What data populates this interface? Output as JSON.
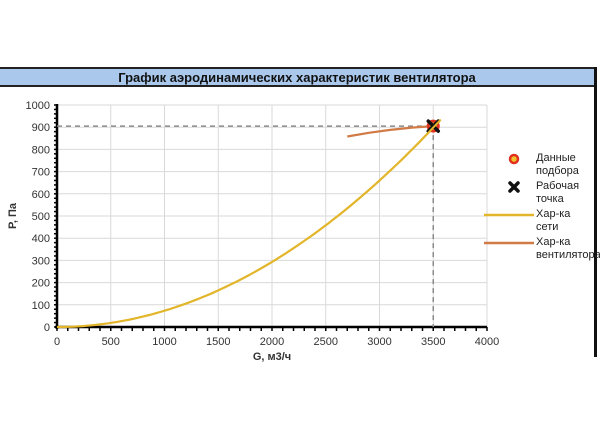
{
  "chart_data": {
    "type": "line",
    "title": "График аэродинамических характеристик вентилятора",
    "xlabel": "G, м3/ч",
    "ylabel": "P, Па",
    "xlim": [
      0,
      4000
    ],
    "ylim": [
      0,
      1000
    ],
    "x_ticks": [
      0,
      500,
      1000,
      1500,
      2000,
      2500,
      3000,
      3500,
      4000
    ],
    "y_ticks": [
      0,
      100,
      200,
      300,
      400,
      500,
      600,
      700,
      800,
      900,
      1000
    ],
    "grid": true,
    "legend_position": "right",
    "series": [
      {
        "name": "Хар-ка сети",
        "type": "line",
        "color": "#e2b52a",
        "x": [
          0,
          500,
          1000,
          1500,
          2000,
          2500,
          3000,
          3500,
          3560
        ],
        "y": [
          0,
          18,
          73,
          165,
          293,
          458,
          660,
          898,
          930
        ]
      },
      {
        "name": "Хар-ка вентилятора",
        "type": "line",
        "color": "#d07a45",
        "x": [
          2700,
          2900,
          3100,
          3300,
          3500,
          3550
        ],
        "y": [
          858,
          875,
          888,
          898,
          905,
          908
        ]
      },
      {
        "name": "Данные подбора",
        "type": "scatter",
        "color": "#e0301e",
        "x": [
          3500
        ],
        "y": [
          905
        ]
      },
      {
        "name": "Рабочая точка",
        "type": "scatter",
        "color": "#111111",
        "x": [
          3500
        ],
        "y": [
          905
        ]
      }
    ],
    "reference_lines": {
      "horizontal_y": 905,
      "vertical_x": 3500
    }
  },
  "legend": {
    "items": [
      {
        "label": "Данные подбора",
        "line1": "Данные",
        "line2": "подбора"
      },
      {
        "label": "Рабочая точка",
        "line1": "Рабочая",
        "line2": "точка"
      },
      {
        "label": "Хар-ка сети",
        "line1": "Хар-ка сети",
        "line2": ""
      },
      {
        "label": "Хар-ка вентилятора",
        "line1": "Хар-ка",
        "line2": "вентилятора"
      }
    ]
  }
}
